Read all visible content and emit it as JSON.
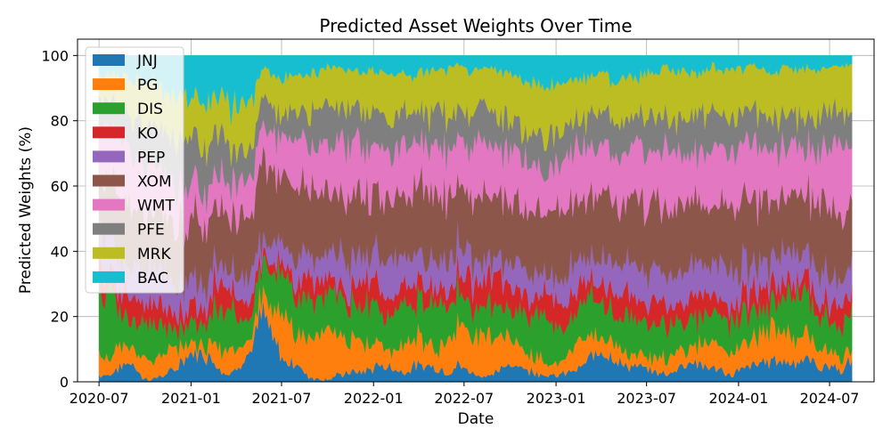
{
  "chart_data": {
    "type": "area",
    "title": "Predicted Asset Weights Over Time",
    "xlabel": "Date",
    "ylabel": "Predicted Weights (%)",
    "x_start": "2020-07-01",
    "x_end": "2024-08-15",
    "xlim": [
      "2020-05-19",
      "2024-09-28"
    ],
    "ylim": [
      0,
      105
    ],
    "y_ticks": [
      0,
      20,
      40,
      60,
      80,
      100
    ],
    "x_ticks": [
      "2020-07",
      "2021-01",
      "2021-07",
      "2022-01",
      "2022-07",
      "2023-01",
      "2023-07",
      "2024-01",
      "2024-07"
    ],
    "grid": true,
    "legend_position": "top-left",
    "stacked": true,
    "series": [
      {
        "name": "JNJ",
        "color": "#1f77b4",
        "values": [
          2,
          2,
          5,
          6,
          1,
          1,
          2,
          4,
          8,
          9,
          8,
          4,
          2,
          6,
          10,
          22,
          12,
          6,
          6,
          2,
          1,
          1,
          2,
          3,
          3,
          4,
          5,
          4,
          3,
          5,
          5,
          4,
          3,
          5,
          3,
          2,
          2,
          4,
          6,
          4,
          3,
          2,
          2,
          3,
          4,
          7,
          10,
          8,
          5,
          5,
          4,
          3,
          2,
          4,
          6,
          5,
          4,
          3,
          2,
          4,
          5,
          6,
          7,
          6,
          6,
          7,
          4,
          5,
          3,
          7
        ]
      },
      {
        "name": "PG",
        "color": "#ff7f0e",
        "values": [
          6,
          5,
          6,
          5,
          7,
          4,
          8,
          6,
          4,
          3,
          4,
          6,
          7,
          5,
          4,
          6,
          9,
          12,
          10,
          11,
          13,
          14,
          12,
          10,
          9,
          8,
          7,
          6,
          10,
          9,
          7,
          6,
          11,
          12,
          13,
          12,
          12,
          11,
          7,
          6,
          5,
          4,
          3,
          6,
          8,
          7,
          5,
          6,
          4,
          4,
          4,
          4,
          4,
          5,
          4,
          6,
          7,
          8,
          6,
          7,
          8,
          9,
          10,
          9,
          8,
          7,
          5,
          5,
          4,
          3
        ]
      },
      {
        "name": "DIS",
        "color": "#2ca02c",
        "values": [
          20,
          18,
          11,
          8,
          10,
          12,
          9,
          6,
          5,
          6,
          8,
          12,
          14,
          9,
          6,
          10,
          12,
          12,
          10,
          12,
          11,
          11,
          11,
          10,
          11,
          12,
          10,
          11,
          12,
          11,
          12,
          13,
          11,
          10,
          8,
          9,
          9,
          8,
          9,
          12,
          13,
          14,
          12,
          10,
          9,
          12,
          10,
          9,
          11,
          12,
          10,
          9,
          10,
          8,
          9,
          7,
          8,
          9,
          10,
          9,
          8,
          7,
          9,
          10,
          14,
          13,
          9,
          8,
          10,
          11
        ]
      },
      {
        "name": "KO",
        "color": "#d62728",
        "values": [
          8,
          6,
          7,
          8,
          5,
          6,
          6,
          5,
          5,
          6,
          4,
          10,
          5,
          6,
          5,
          2,
          3,
          3,
          4,
          6,
          5,
          4,
          3,
          4,
          9,
          7,
          6,
          5,
          6,
          7,
          5,
          4,
          5,
          6,
          8,
          9,
          10,
          8,
          7,
          6,
          5,
          8,
          7,
          6,
          7,
          5,
          6,
          7,
          8,
          6,
          5,
          7,
          6,
          5,
          6,
          7,
          6,
          5,
          4,
          6,
          7,
          6,
          5,
          4,
          4,
          5,
          4,
          5,
          6,
          6
        ]
      },
      {
        "name": "PEP",
        "color": "#9467bd",
        "values": [
          12,
          10,
          9,
          8,
          12,
          10,
          11,
          10,
          9,
          8,
          6,
          7,
          5,
          6,
          8,
          4,
          6,
          5,
          8,
          7,
          6,
          8,
          9,
          10,
          8,
          7,
          10,
          11,
          9,
          8,
          7,
          9,
          10,
          8,
          7,
          6,
          5,
          6,
          7,
          8,
          9,
          6,
          8,
          10,
          9,
          7,
          8,
          9,
          8,
          10,
          11,
          9,
          8,
          9,
          10,
          8,
          9,
          10,
          11,
          9,
          7,
          8,
          9,
          10,
          8,
          7,
          9,
          8,
          7,
          9
        ]
      },
      {
        "name": "XOM",
        "color": "#8c564b",
        "values": [
          15,
          17,
          20,
          19,
          17,
          18,
          16,
          17,
          18,
          20,
          19,
          15,
          17,
          20,
          18,
          25,
          22,
          20,
          22,
          20,
          20,
          19,
          20,
          21,
          18,
          17,
          19,
          20,
          18,
          21,
          22,
          21,
          19,
          18,
          17,
          18,
          20,
          21,
          19,
          18,
          20,
          19,
          21,
          20,
          18,
          19,
          20,
          18,
          17,
          18,
          19,
          20,
          21,
          19,
          20,
          18,
          17,
          19,
          18,
          20,
          19,
          18,
          17,
          19,
          18,
          19,
          20,
          21,
          20,
          21
        ]
      },
      {
        "name": "WMT",
        "color": "#e377c2",
        "values": [
          17,
          18,
          16,
          17,
          16,
          15,
          14,
          13,
          12,
          10,
          9,
          8,
          10,
          11,
          12,
          10,
          12,
          14,
          15,
          15,
          16,
          15,
          17,
          16,
          15,
          16,
          15,
          14,
          15,
          13,
          14,
          15,
          14,
          13,
          16,
          17,
          15,
          14,
          16,
          15,
          14,
          13,
          14,
          15,
          16,
          14,
          13,
          15,
          16,
          15,
          16,
          15,
          17,
          16,
          14,
          15,
          16,
          15,
          17,
          16,
          17,
          16,
          15,
          14,
          13,
          14,
          16,
          17,
          18,
          18
        ]
      },
      {
        "name": "PFE",
        "color": "#7f7f7f",
        "values": [
          8,
          10,
          10,
          12,
          12,
          14,
          12,
          14,
          14,
          12,
          13,
          12,
          10,
          8,
          9,
          9,
          8,
          7,
          9,
          10,
          11,
          12,
          10,
          11,
          10,
          11,
          9,
          10,
          11,
          9,
          10,
          11,
          10,
          9,
          10,
          11,
          10,
          9,
          10,
          9,
          10,
          11,
          10,
          9,
          9,
          10,
          11,
          9,
          10,
          9,
          10,
          11,
          10,
          9,
          10,
          11,
          12,
          11,
          10,
          9,
          10,
          11,
          10,
          9,
          8,
          9,
          10,
          11,
          10,
          11
        ]
      },
      {
        "name": "MRK",
        "color": "#bcbd22",
        "values": [
          6,
          8,
          9,
          10,
          12,
          12,
          12,
          13,
          12,
          12,
          14,
          8,
          14,
          14,
          14,
          8,
          10,
          12,
          10,
          12,
          12,
          12,
          12,
          11,
          12,
          13,
          14,
          13,
          11,
          12,
          13,
          12,
          13,
          14,
          13,
          12,
          13,
          14,
          14,
          15,
          13,
          14,
          14,
          14,
          12,
          13,
          12,
          12,
          14,
          13,
          14,
          13,
          13,
          14,
          14,
          13,
          13,
          12,
          13,
          13,
          14,
          13,
          13,
          14,
          14,
          14,
          13,
          12,
          14,
          13
        ]
      },
      {
        "name": "BAC",
        "color": "#17becf",
        "values": [
          6,
          6,
          7,
          7,
          8,
          8,
          10,
          12,
          13,
          14,
          15,
          10,
          16,
          15,
          14,
          4,
          6,
          7,
          6,
          5,
          5,
          4,
          4,
          4,
          5,
          5,
          5,
          6,
          5,
          5,
          5,
          5,
          4,
          3,
          5,
          4,
          4,
          5,
          5,
          7,
          8,
          9,
          9,
          7,
          8,
          6,
          5,
          7,
          7,
          8,
          5,
          5,
          3,
          5,
          4,
          5,
          3,
          4,
          4,
          4,
          3,
          5,
          5,
          3,
          4,
          4,
          4,
          3,
          3,
          3
        ]
      }
    ]
  }
}
